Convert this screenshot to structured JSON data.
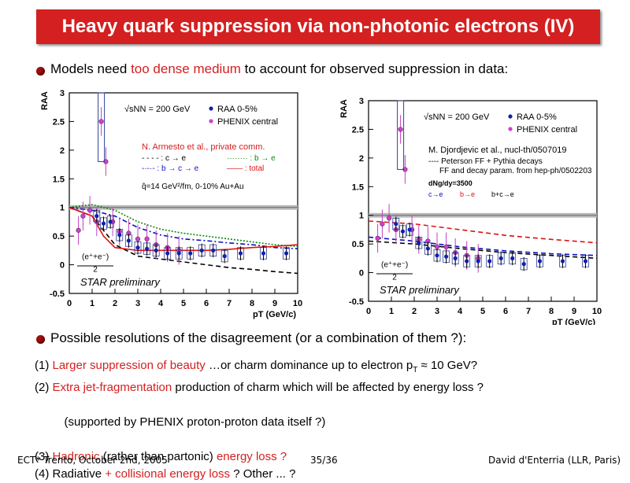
{
  "slide": {
    "title": "Heavy quark suppression via non-photonic electrons (IV)",
    "bullet1": {
      "prefix": "Models need ",
      "highlight": "too dense medium",
      "suffix": " to account for observed suppression in data:"
    },
    "bullet2": "Possible resolutions of the disagreement (or a combination of them ?):",
    "items": [
      {
        "pre": "(1) ",
        "red": "Larger suppression of beauty",
        "post": " …or charm dominance up to electron p",
        "sub": "T",
        "post2": " ≈ 10 GeV?"
      },
      {
        "pre": "(2) ",
        "red": "Extra jet-fragmentation",
        "post": " production of charm which will be affected by energy loss ?"
      },
      {
        "pre": "     (supported by PHENIX proton-proton data itself ?)"
      },
      {
        "pre": "(3) ",
        "red": "Hadronic",
        "post": " (rather than partonic) ",
        "red2": "energy loss ?"
      },
      {
        "pre": "(4) Radiative ",
        "red": "+ collisional energy loss",
        "post": " ? Other ... ?"
      }
    ],
    "footer": {
      "left": "ECT* Trento, October 2nd, 2005",
      "center": "35/36",
      "right": "David d'Enterria (LLR, Paris)"
    }
  },
  "colors": {
    "title_bg": "#d42020",
    "highlight": "#d42020"
  },
  "chart_data": [
    {
      "type": "scatter",
      "xlabel": "pT (GeV/c)",
      "ylabel": "RAA",
      "xlim": [
        0,
        10
      ],
      "ylim": [
        -0.5,
        3
      ],
      "xticks": [
        "0",
        "1",
        "2",
        "3",
        "4",
        "5",
        "6",
        "7",
        "8",
        "9",
        "10"
      ],
      "yticks": [
        "-0.5",
        "0",
        "0.5",
        "1",
        "1.5",
        "2",
        "2.5",
        "3"
      ],
      "legend": {
        "energy": "√sNN = 200 GeV",
        "raa": "RAA 0-5%",
        "phenix": "PHENIX central"
      },
      "model_title": "N. Armesto et al., private comm.",
      "model_legend": [
        "- - - - : c → e",
        "········ : b → e",
        "-·-·- : b → c → e",
        "—— : total"
      ],
      "model_note": "q̂=14 GeV²/fm, 0-10% Au+Au",
      "annot_ratio": "(e⁺+e⁻)",
      "annot_den": "2",
      "prelim": "STAR preliminary",
      "star": {
        "x": [
          1.2,
          1.5,
          1.8,
          2.2,
          2.6,
          3.0,
          3.4,
          3.8,
          4.3,
          4.8,
          5.3,
          5.8,
          6.3,
          6.8,
          7.5,
          8.5,
          9.5
        ],
        "y": [
          0.85,
          0.72,
          0.75,
          0.52,
          0.42,
          0.3,
          0.28,
          0.25,
          0.2,
          0.2,
          0.2,
          0.25,
          0.25,
          0.15,
          0.2,
          0.2,
          0.2
        ]
      },
      "phenix": {
        "x": [
          0.4,
          0.6,
          0.9,
          1.2,
          1.4,
          1.6,
          1.9,
          2.2,
          2.6,
          3.0,
          3.4,
          3.8,
          4.3,
          4.8
        ],
        "y": [
          0.6,
          0.85,
          0.95,
          0.75,
          2.5,
          1.8,
          0.75,
          0.58,
          0.55,
          0.45,
          0.45,
          0.35,
          0.3,
          0.25
        ]
      },
      "curves": {
        "c_to_e": {
          "x": [
            0,
            1,
            2,
            3,
            4,
            5,
            6,
            7,
            8,
            9,
            10
          ],
          "y": [
            1.0,
            0.85,
            0.35,
            0.15,
            0.1,
            0.05,
            0.0,
            -0.05,
            -0.08,
            -0.12,
            -0.15
          ]
        },
        "b_to_e": {
          "x": [
            0,
            1,
            2,
            3,
            4,
            5,
            6,
            7,
            8,
            9,
            10
          ],
          "y": [
            1.0,
            1.05,
            0.95,
            0.75,
            0.62,
            0.55,
            0.5,
            0.45,
            0.4,
            0.35,
            0.32
          ]
        },
        "b_c_e": {
          "x": [
            0,
            1,
            2,
            3,
            4,
            5,
            6,
            7,
            8,
            9,
            10
          ],
          "y": [
            1.0,
            0.95,
            0.85,
            0.65,
            0.52,
            0.45,
            0.42,
            0.38,
            0.35,
            0.3,
            0.28
          ]
        },
        "total": {
          "x": [
            0,
            1,
            1.5,
            2,
            3,
            4,
            5,
            6,
            7,
            8,
            9,
            10
          ],
          "y": [
            1.0,
            0.85,
            0.5,
            0.3,
            0.25,
            0.25,
            0.25,
            0.25,
            0.27,
            0.3,
            0.32,
            0.35
          ]
        }
      }
    },
    {
      "type": "scatter",
      "xlabel": "pT (GeV/c)",
      "ylabel": "RAA",
      "xlim": [
        0,
        10
      ],
      "ylim": [
        -0.5,
        3
      ],
      "xticks": [
        "0",
        "1",
        "2",
        "3",
        "4",
        "5",
        "6",
        "7",
        "8",
        "9",
        "10"
      ],
      "yticks": [
        "-0.5",
        "0",
        "0.5",
        "1",
        "1.5",
        "2",
        "2.5",
        "3"
      ],
      "legend": {
        "energy": "√sNN = 200 GeV",
        "raa": "RAA 0-5%",
        "phenix": "PHENIX central"
      },
      "model_title": "M. Djordjevic et al., nucl-th/0507019",
      "model_lines": [
        "---- Peterson FF + Pythia decays",
        "FF and decay param. from hep-ph/0502203"
      ],
      "model_note": "dNg/dy=3500",
      "curve_labels": [
        "c→e",
        "b→e",
        "b+c→e"
      ],
      "annot_ratio": "(e⁺+e⁻)",
      "annot_den": "2",
      "prelim": "STAR preliminary",
      "star": {
        "x": [
          1.2,
          1.5,
          1.8,
          2.2,
          2.6,
          3.0,
          3.4,
          3.8,
          4.3,
          4.8,
          5.3,
          5.8,
          6.3,
          6.8,
          7.5,
          8.5,
          9.5
        ],
        "y": [
          0.85,
          0.72,
          0.75,
          0.52,
          0.42,
          0.3,
          0.28,
          0.25,
          0.2,
          0.2,
          0.2,
          0.25,
          0.25,
          0.15,
          0.2,
          0.2,
          0.2
        ]
      },
      "phenix": {
        "x": [
          0.4,
          0.6,
          0.9,
          1.2,
          1.4,
          1.6,
          1.9,
          2.2,
          2.6,
          3.0,
          3.4,
          3.8,
          4.3,
          4.8
        ],
        "y": [
          0.6,
          0.85,
          0.95,
          0.75,
          2.5,
          1.8,
          0.75,
          0.58,
          0.55,
          0.45,
          0.45,
          0.35,
          0.3,
          0.25
        ]
      },
      "curves": {
        "c_to_e": {
          "x": [
            0,
            2,
            4,
            6,
            8,
            10
          ],
          "y": [
            0.62,
            0.55,
            0.45,
            0.38,
            0.33,
            0.3
          ]
        },
        "b_to_e": {
          "x": [
            0,
            2,
            4,
            6,
            8,
            10
          ],
          "y": [
            0.9,
            0.85,
            0.75,
            0.65,
            0.58,
            0.52
          ]
        },
        "b_c_e": {
          "x": [
            0,
            2,
            4,
            6,
            8,
            10
          ],
          "y": [
            0.55,
            0.5,
            0.42,
            0.35,
            0.3,
            0.25
          ]
        }
      }
    }
  ]
}
